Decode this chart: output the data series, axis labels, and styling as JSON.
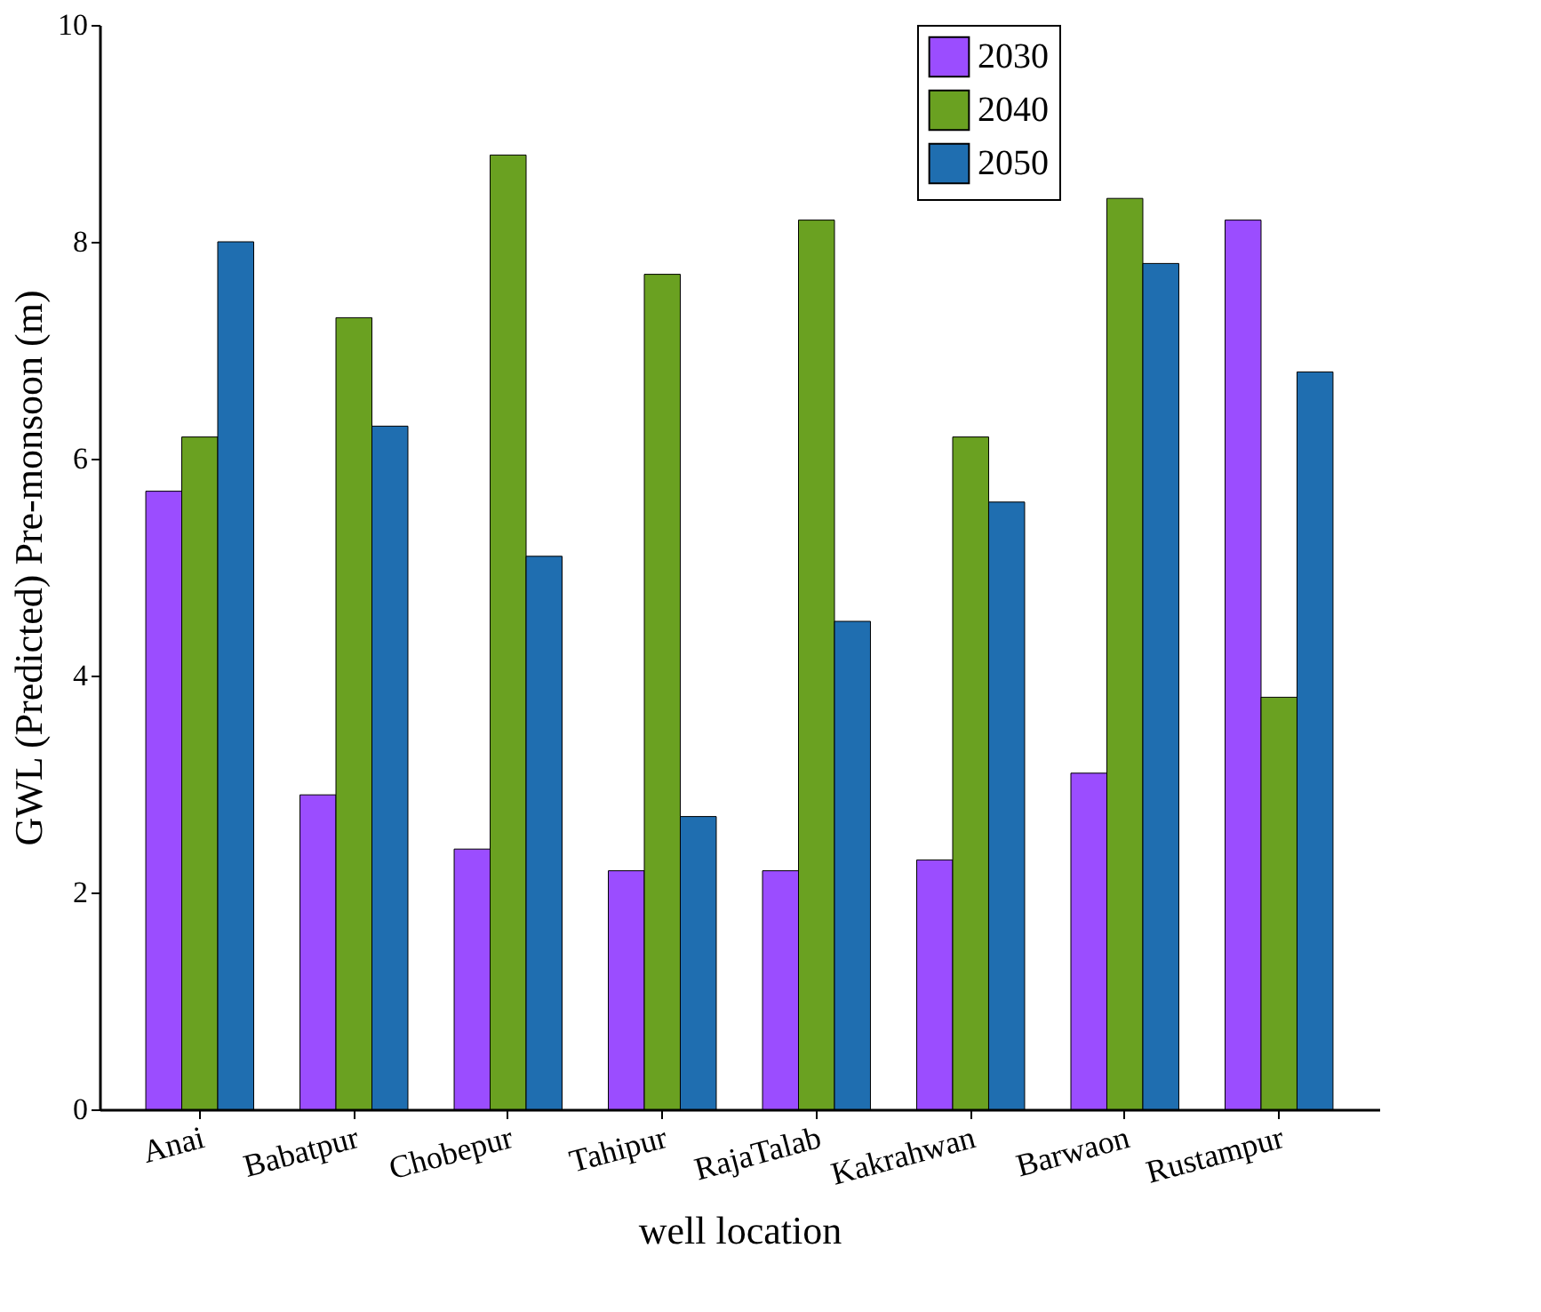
{
  "chart_data": {
    "type": "bar",
    "xlabel": "well location",
    "ylabel": "GWL (Predicted) Pre-monsoon (m)",
    "categories": [
      "Anai",
      "Babatpur",
      "Chobepur",
      "Tahipur",
      "RajaTalab",
      "Kakrahwan",
      "Barwaon",
      "Rustampur"
    ],
    "series": [
      {
        "name": "2030",
        "color": "#9b4dff",
        "values": [
          5.7,
          2.9,
          2.4,
          2.2,
          2.2,
          2.3,
          3.1,
          8.2
        ]
      },
      {
        "name": "2040",
        "color": "#6aa121",
        "values": [
          6.2,
          7.3,
          8.8,
          7.7,
          8.2,
          6.2,
          8.4,
          3.8
        ]
      },
      {
        "name": "2050",
        "color": "#1f6eb0",
        "values": [
          8.0,
          6.3,
          5.1,
          2.7,
          4.5,
          5.6,
          7.8,
          6.8
        ]
      }
    ],
    "ylim": [
      0,
      10
    ],
    "yticks": [
      0,
      2,
      4,
      6,
      8,
      10
    ],
    "grid": false,
    "legend": "top right"
  }
}
